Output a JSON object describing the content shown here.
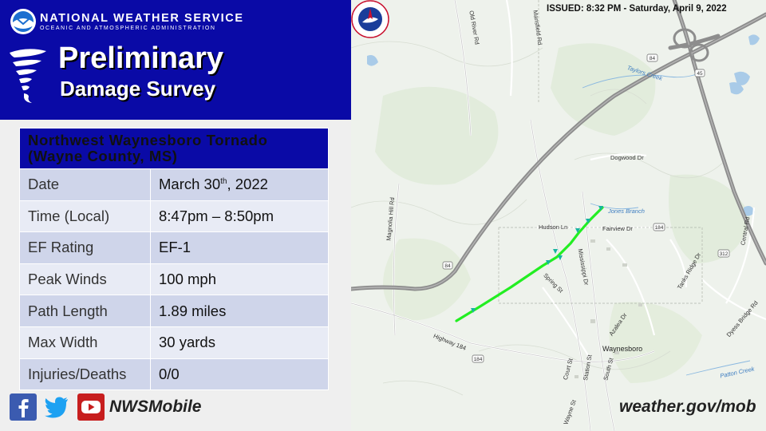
{
  "header": {
    "org_name": "NATIONAL WEATHER SERVICE",
    "org_sub": "OCEANIC AND ATMOSPHERIC ADMINISTRATION",
    "title_line1": "Preliminary",
    "title_line2": "Damage Survey"
  },
  "survey": {
    "event_name": "Northwest Waynesboro Tornado (Wayne County, MS)",
    "rows": [
      {
        "label": "Date",
        "value": "March 30",
        "value_sup": "th",
        "value_suffix": ", 2022"
      },
      {
        "label": "Time (Local)",
        "value": "8:47pm – 8:50pm"
      },
      {
        "label": "EF Rating",
        "value": "EF-1"
      },
      {
        "label": "Peak Winds",
        "value": "100 mph"
      },
      {
        "label": "Path Length",
        "value": "1.89 miles"
      },
      {
        "label": "Max Width",
        "value": "30 yards"
      },
      {
        "label": "Injuries/Deaths",
        "value": "0/0"
      }
    ]
  },
  "footer": {
    "social_handle": "NWSMobile",
    "website": "weather.gov/mob",
    "icons": [
      "facebook-icon",
      "twitter-icon",
      "youtube-icon"
    ]
  },
  "map": {
    "issued": "ISSUED: 8:32 PM - Saturday, April 9, 2022",
    "roads": [
      "Old River Rd",
      "Magnolia Hill Rd",
      "Highway 184",
      "Hudson Ln",
      "Fairview Dr",
      "Dogwood Dr",
      "Mississippi Dr",
      "Spring St",
      "Azalea Dr",
      "Court St",
      "Station St",
      "South St",
      "Wayne St",
      "Central Rd",
      "Dyess Bridge Rd",
      "Tanks Ridge Dr",
      "Mansfield Rd"
    ],
    "route_shields": [
      "84",
      "45",
      "84",
      "184",
      "184",
      "312"
    ],
    "waterways": [
      "Taylors Creek",
      "Jones Branch",
      "Patton Creek"
    ],
    "town": "Waynesboro",
    "colors": {
      "track": "#22ee22",
      "highway": "#8d8d8d",
      "water": "#a9cbe8",
      "land": "#eef2ec",
      "header_blue": "#0a0aa6"
    }
  }
}
